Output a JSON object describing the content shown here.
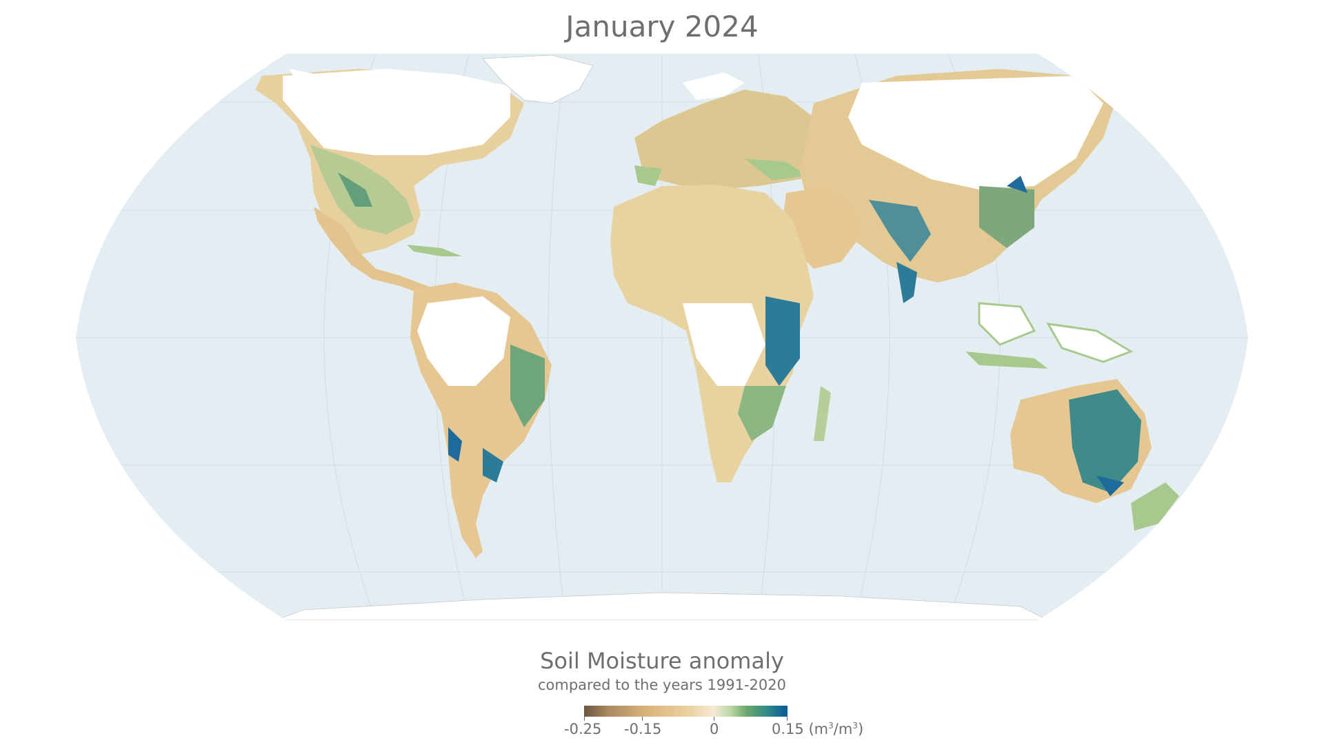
{
  "title": "January 2024",
  "legend": {
    "title": "Soil Moisture anomaly",
    "subtitle": "compared to the years 1991-2020",
    "ticks": [
      "-0.25",
      "-0.15",
      "0",
      "0.15"
    ],
    "unit_prefix": "(m",
    "unit_sup1": "3",
    "unit_mid": "/m",
    "unit_sup2": "3",
    "unit_suffix": ")",
    "colors": {
      "dry_extreme": "#6b5640",
      "dry": "#d9b27a",
      "neutral": "#f4ead6",
      "wet": "#6aa66b",
      "wet_extreme": "#085a96"
    }
  },
  "map": {
    "projection": "Robinson",
    "ocean_color": "#e4eef2",
    "no_data_color": "#ffffff"
  }
}
